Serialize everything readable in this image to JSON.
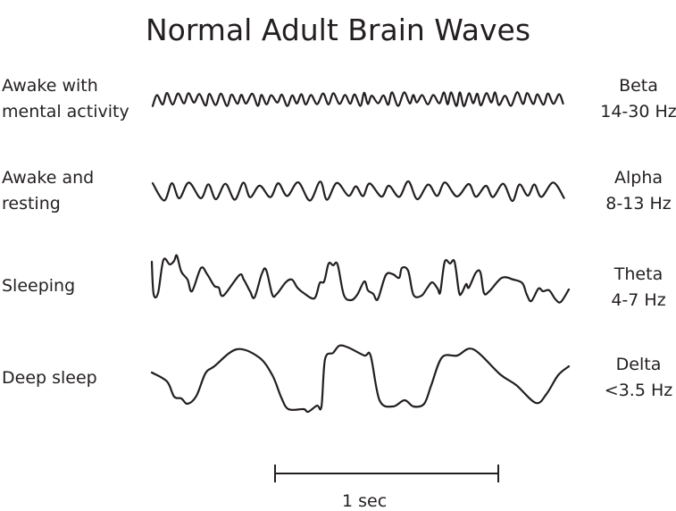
{
  "title": "Normal Adult Brain Waves",
  "waves": [
    {
      "state_line1": "Awake with",
      "state_line2": "mental activity",
      "name": "Beta",
      "frequency": "14-30 Hz"
    },
    {
      "state_line1": "Awake and",
      "state_line2": "resting",
      "name": "Alpha",
      "frequency": "8-13 Hz"
    },
    {
      "state_line1": "Sleeping",
      "state_line2": "",
      "name": "Theta",
      "frequency": "4-7 Hz"
    },
    {
      "state_line1": "Deep sleep",
      "state_line2": "",
      "name": "Delta",
      "frequency": "<3.5 Hz"
    }
  ],
  "scale_bar": {
    "label": "1 sec"
  },
  "colors": {
    "ink": "#231f20",
    "background": "#ffffff"
  }
}
